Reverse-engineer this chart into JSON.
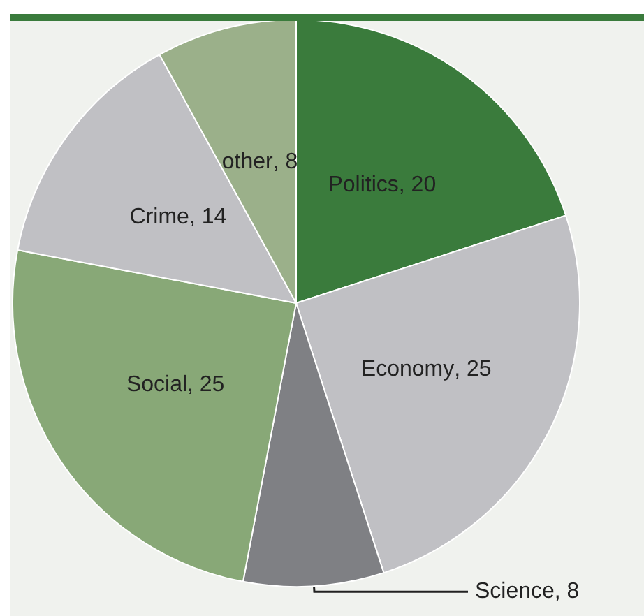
{
  "chart_data": {
    "type": "pie",
    "categories": [
      "Politics",
      "Economy",
      "Science",
      "Social",
      "Crime",
      "other"
    ],
    "values": [
      20,
      25,
      8,
      25,
      14,
      8
    ],
    "value_labels": [
      ", 20",
      ", 25",
      ", 8",
      ", 25",
      ", 14",
      ", 8"
    ],
    "colors": [
      "#3a7b3c",
      "#c0c0c4",
      "#7f8084",
      "#88a877",
      "#c0c0c4",
      "#9bb08a"
    ],
    "legend": false
  }
}
